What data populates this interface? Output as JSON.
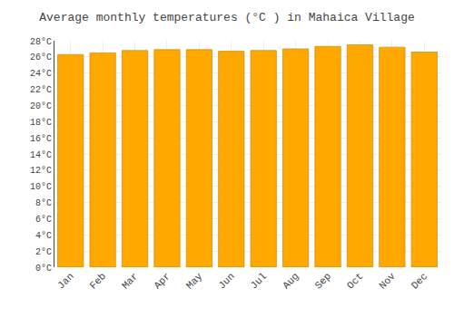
{
  "chart_data": {
    "type": "bar",
    "title": "Average monthly temperatures (°C ) in Mahaica Village",
    "categories": [
      "Jan",
      "Feb",
      "Mar",
      "Apr",
      "May",
      "Jun",
      "Jul",
      "Aug",
      "Sep",
      "Oct",
      "Nov",
      "Dec"
    ],
    "values": [
      26.3,
      26.5,
      26.8,
      26.9,
      26.9,
      26.7,
      26.8,
      27.0,
      27.3,
      27.5,
      27.2,
      26.6
    ],
    "color": "#FFA800",
    "ylim": [
      0,
      28
    ],
    "yticks": [
      {
        "value": 0,
        "label": "0°C"
      },
      {
        "value": 2,
        "label": "2°C"
      },
      {
        "value": 4,
        "label": "4°C"
      },
      {
        "value": 6,
        "label": "6°C"
      },
      {
        "value": 8,
        "label": "8°C"
      },
      {
        "value": 10,
        "label": "10°C"
      },
      {
        "value": 12,
        "label": "12°C"
      },
      {
        "value": 14,
        "label": "14°C"
      },
      {
        "value": 16,
        "label": "16°C"
      },
      {
        "value": 18,
        "label": "18°C"
      },
      {
        "value": 20,
        "label": "20°C"
      },
      {
        "value": 22,
        "label": "22°C"
      },
      {
        "value": 24,
        "label": "24°C"
      },
      {
        "value": 26,
        "label": "26°C"
      },
      {
        "value": 28,
        "label": "28°C"
      }
    ],
    "grid": true
  }
}
